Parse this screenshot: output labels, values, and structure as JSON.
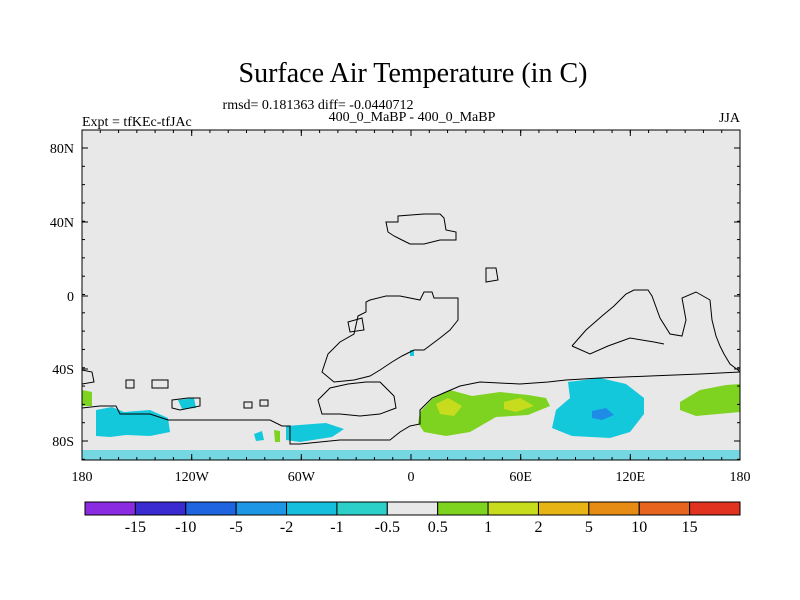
{
  "title": "Surface Air Temperature (in C)",
  "stats_line": "rmsd= 0.181363 diff= -0.0440712",
  "left_label": "Expt = tfKEc-tfJAc",
  "center_label": "400_0_MaBP - 400_0_MaBP",
  "right_label": "JJA",
  "lat_ticks": [
    "80N",
    "40N",
    "0",
    "40S",
    "80S"
  ],
  "lon_ticks": [
    "180",
    "120W",
    "60W",
    "0",
    "60E",
    "120E",
    "180"
  ],
  "colorbar": {
    "labels": [
      "-15",
      "-10",
      "-5",
      "-2",
      "-1",
      "-0.5",
      "0.5",
      "1",
      "2",
      "5",
      "10",
      "15"
    ],
    "colors": [
      "#8a2be2",
      "#3a2bd0",
      "#1e64e0",
      "#1e96e6",
      "#14bedc",
      "#2cd0c8",
      "#e8e8e8",
      "#7ed321",
      "#c8dc1e",
      "#e6b414",
      "#e68c14",
      "#e6641e",
      "#e0321e"
    ]
  },
  "colors": {
    "land_bg": "#e8e8e8",
    "cool": "#14c8dc",
    "blue": "#1e8ce6",
    "green": "#7ed321",
    "yellow": "#c8dc1e"
  }
}
